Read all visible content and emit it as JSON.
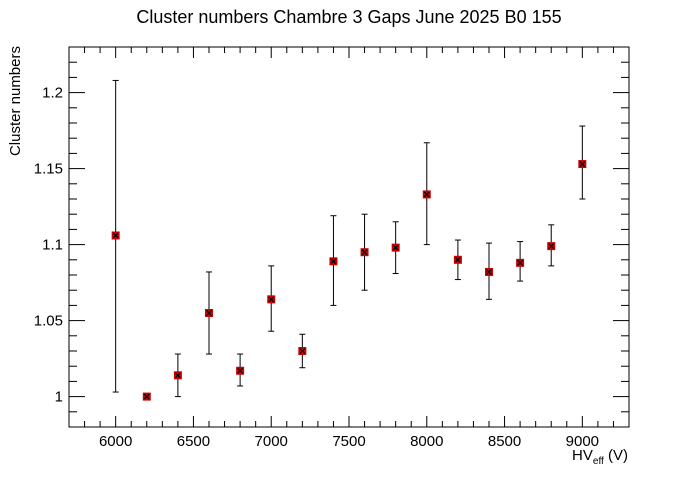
{
  "chart_data": {
    "type": "scatter",
    "title": "Cluster numbers Chambre 3 Gaps June 2025 B0 155",
    "xlabel": {
      "main": "HV",
      "sub": "eff",
      "suffix": " (V)"
    },
    "ylabel": "Cluster numbers",
    "xlim": [
      5700,
      9300
    ],
    "ylim": [
      0.98,
      1.23
    ],
    "x_ticks": [
      6000,
      6500,
      7000,
      7500,
      8000,
      8500,
      9000
    ],
    "y_ticks": [
      1,
      1.05,
      1.1,
      1.15,
      1.2
    ],
    "y_tick_labels": [
      "1",
      "1.05",
      "1.1",
      "1.15",
      "1.2"
    ],
    "grid": false,
    "legend": "none",
    "marker_color": "#cc0000",
    "errorbar_color": "#000000",
    "series": [
      {
        "points": [
          {
            "x": 6000,
            "y": 1.106,
            "ylow": 1.003,
            "yhigh": 1.208
          },
          {
            "x": 6200,
            "y": 1.0,
            "ylow": 1.0,
            "yhigh": 1.0
          },
          {
            "x": 6400,
            "y": 1.014,
            "ylow": 1.0,
            "yhigh": 1.028
          },
          {
            "x": 6600,
            "y": 1.055,
            "ylow": 1.028,
            "yhigh": 1.082
          },
          {
            "x": 6800,
            "y": 1.017,
            "ylow": 1.007,
            "yhigh": 1.028
          },
          {
            "x": 7000,
            "y": 1.064,
            "ylow": 1.043,
            "yhigh": 1.086
          },
          {
            "x": 7200,
            "y": 1.03,
            "ylow": 1.019,
            "yhigh": 1.041
          },
          {
            "x": 7400,
            "y": 1.089,
            "ylow": 1.06,
            "yhigh": 1.119
          },
          {
            "x": 7600,
            "y": 1.095,
            "ylow": 1.07,
            "yhigh": 1.12
          },
          {
            "x": 7800,
            "y": 1.098,
            "ylow": 1.081,
            "yhigh": 1.115
          },
          {
            "x": 8000,
            "y": 1.133,
            "ylow": 1.1,
            "yhigh": 1.167
          },
          {
            "x": 8200,
            "y": 1.09,
            "ylow": 1.077,
            "yhigh": 1.103
          },
          {
            "x": 8400,
            "y": 1.082,
            "ylow": 1.064,
            "yhigh": 1.101
          },
          {
            "x": 8600,
            "y": 1.088,
            "ylow": 1.076,
            "yhigh": 1.102
          },
          {
            "x": 8800,
            "y": 1.099,
            "ylow": 1.086,
            "yhigh": 1.113
          },
          {
            "x": 9000,
            "y": 1.153,
            "ylow": 1.13,
            "yhigh": 1.178
          }
        ]
      }
    ]
  }
}
